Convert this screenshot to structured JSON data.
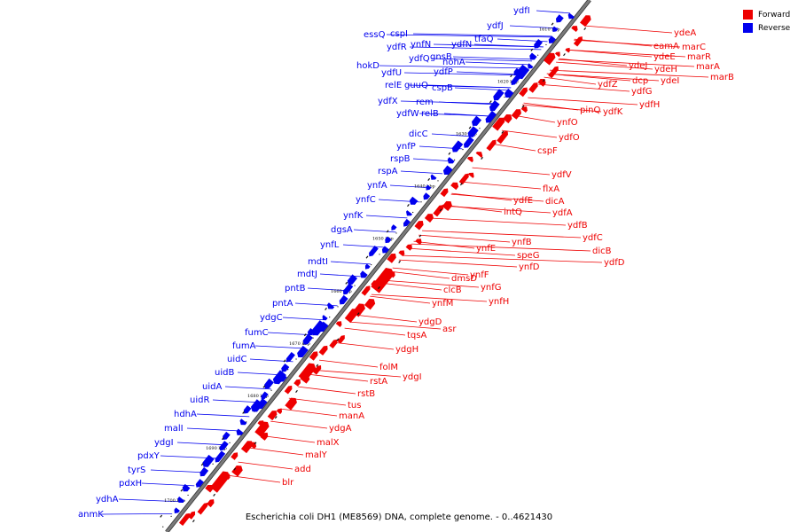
{
  "caption": "Escherichia coli DH1 (ME8569) DNA, complete genome. - 0..4621430",
  "legend": [
    {
      "label": "Forward",
      "color": "#ee0000"
    },
    {
      "label": "Reverse",
      "color": "#0000ee"
    }
  ],
  "colors": {
    "forward": "#ee0000",
    "reverse": "#0000ee",
    "backbone": "#7a7a7a"
  },
  "ticks": [
    "1610 kbp",
    "1620 kbp",
    "1630 kbp",
    "1640 kbp",
    "1650 kbp",
    "1660 kbp",
    "1670 kbp",
    "1680 kbp",
    "1690 kbp",
    "1700 kbp"
  ],
  "reverse_genes": [
    "ydfI",
    "ydfJ",
    "essQ",
    "cspI",
    "ydfR",
    "ynfN",
    "gnsB",
    "ydfN",
    "tfaQ",
    "ydfQ",
    "nohA",
    "hokD",
    "ydfU",
    "ydfP",
    "relE",
    "guuQ",
    "cspB",
    "rem",
    "ydfX",
    "ydfW",
    "relB",
    "dicC",
    "ynfP",
    "rspB",
    "rspA",
    "ynfA",
    "ynfC",
    "ynfK",
    "dgsA",
    "ynfL",
    "mdtI",
    "mdtJ",
    "pntB",
    "pntA",
    "ydgC",
    "fumC",
    "fumA",
    "uidC",
    "uidB",
    "uidA",
    "uidR",
    "hdhA",
    "malI",
    "ydgI",
    "pdxY",
    "tyrS",
    "pdxH",
    "ydhA",
    "anmK"
  ],
  "forward_genes": [
    "ydeA",
    "eamA",
    "marC",
    "ydeE",
    "marR",
    "ydeJ",
    "ydeH",
    "marA",
    "marB",
    "dcp",
    "ydeI",
    "ydfZ",
    "ydfG",
    "ydfH",
    "pinQ",
    "ydfK",
    "ynfO",
    "ydfO",
    "cspF",
    "ydfV",
    "flxA",
    "ydfE",
    "dicA",
    "intQ",
    "ydfA",
    "ydfB",
    "ydfC",
    "dicB",
    "ydfD",
    "ynfB",
    "ynfE",
    "speG",
    "ynfD",
    "ynfF",
    "dmsD",
    "ynfG",
    "clcB",
    "ynfH",
    "ynfM",
    "ydgD",
    "asr",
    "tqsA",
    "ydgH",
    "folM",
    "ydgI",
    "rstA",
    "tus",
    "rstB",
    "manA",
    "ydgA",
    "malX",
    "malY",
    "add",
    "blr"
  ]
}
